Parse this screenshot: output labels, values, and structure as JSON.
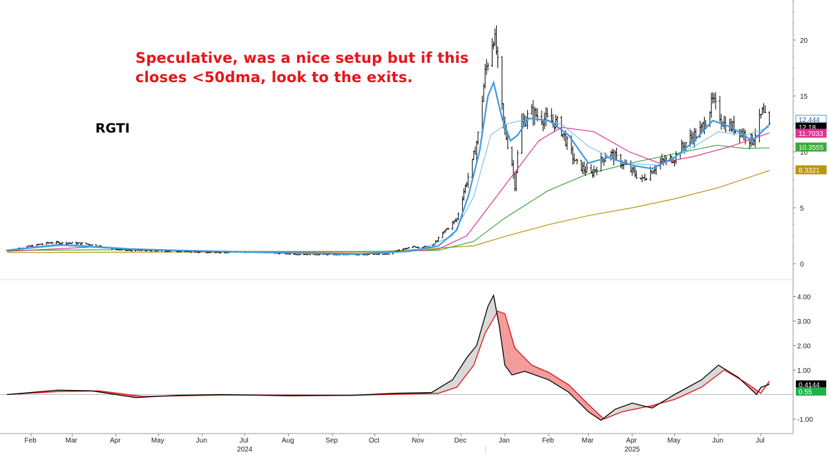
{
  "annotation": {
    "line1": "Speculative, was a nice setup but if this",
    "line2": "closes <50dma, look to the exits."
  },
  "ticker": "RGTI",
  "colors": {
    "annotation": "#e8141b",
    "price_bars": "#000000",
    "ma_short": "#3d9be0",
    "ma_medium": "#7cc2f0",
    "ma_pink": "#e0358f",
    "ma_50": "#3aa83a",
    "ma_200": "#b8960f",
    "osc_line": "#000000",
    "osc_signal": "#e01010",
    "osc_fill_up": "#d8d8d8",
    "osc_fill_down": "#f39a9a"
  },
  "chart_data": [
    {
      "type": "ohlc",
      "title": "RGTI",
      "y_ticks": [
        "0",
        "5",
        "10",
        "15",
        "20"
      ],
      "ylim": [
        -0.5,
        23.5
      ],
      "x_ticks": [
        "Feb",
        "Mar",
        "Apr",
        "May",
        "Jun",
        "Jul",
        "Aug",
        "Sep",
        "Oct",
        "Nov",
        "Dec",
        "Jan",
        "Feb",
        "Mar",
        "Apr",
        "May",
        "Jun",
        "Jul"
      ],
      "years": [
        "2024",
        "2025"
      ],
      "value_tags": [
        {
          "label": "12.444",
          "series": "ma_short"
        },
        {
          "label": "12.18",
          "series": "price"
        },
        {
          "label": "11.7033",
          "series": "ma_pink"
        },
        {
          "label": "10.3555",
          "series": "ma_50"
        },
        {
          "label": "8.3321",
          "series": "ma_200"
        }
      ],
      "price_path": [
        [
          "2024-01-15",
          1.2
        ],
        [
          "2024-02-15",
          1.9
        ],
        [
          "2024-03-10",
          1.8
        ],
        [
          "2024-04-05",
          1.2
        ],
        [
          "2024-05-05",
          1.15
        ],
        [
          "2024-06-05",
          1.0
        ],
        [
          "2024-07-05",
          1.05
        ],
        [
          "2024-08-05",
          0.85
        ],
        [
          "2024-09-10",
          0.8
        ],
        [
          "2024-10-10",
          0.85
        ],
        [
          "2024-10-25",
          1.5
        ],
        [
          "2024-11-10",
          1.5
        ],
        [
          "2024-11-20",
          3.0
        ],
        [
          "2024-11-28",
          4.0
        ],
        [
          "2024-12-03",
          6.5
        ],
        [
          "2024-12-09",
          9.0
        ],
        [
          "2024-12-13",
          11.5
        ],
        [
          "2024-12-18",
          17.0
        ],
        [
          "2024-12-24",
          20.5
        ],
        [
          "2024-12-26",
          19.0
        ],
        [
          "2024-12-31",
          12.5
        ],
        [
          "2025-01-06",
          9.0
        ],
        [
          "2025-01-08",
          7.0
        ],
        [
          "2025-01-12",
          12.5
        ],
        [
          "2025-01-20",
          13.5
        ],
        [
          "2025-01-28",
          13.0
        ],
        [
          "2025-02-08",
          12.5
        ],
        [
          "2025-02-20",
          9.0
        ],
        [
          "2025-03-03",
          8.0
        ],
        [
          "2025-03-15",
          10.0
        ],
        [
          "2025-03-25",
          9.0
        ],
        [
          "2025-04-08",
          7.5
        ],
        [
          "2025-04-20",
          9.0
        ],
        [
          "2025-05-01",
          9.5
        ],
        [
          "2025-05-10",
          11.0
        ],
        [
          "2025-05-20",
          12.0
        ],
        [
          "2025-05-28",
          14.5
        ],
        [
          "2025-06-05",
          12.5
        ],
        [
          "2025-06-15",
          12.0
        ],
        [
          "2025-06-25",
          11.0
        ],
        [
          "2025-07-02",
          13.5
        ],
        [
          "2025-07-07",
          12.18
        ]
      ],
      "moving_averages": {
        "ma_short": [
          [
            "2024-01-15",
            1.2
          ],
          [
            "2024-02-20",
            1.7
          ],
          [
            "2024-04-10",
            1.3
          ],
          [
            "2024-07-01",
            1.05
          ],
          [
            "2024-09-15",
            0.85
          ],
          [
            "2024-10-25",
            1.1
          ],
          [
            "2024-11-15",
            1.6
          ],
          [
            "2024-11-28",
            3.0
          ],
          [
            "2024-12-06",
            6.0
          ],
          [
            "2024-12-14",
            10.0
          ],
          [
            "2024-12-20",
            15.0
          ],
          [
            "2024-12-24",
            16.2
          ],
          [
            "2024-12-30",
            13.0
          ],
          [
            "2025-01-05",
            11.0
          ],
          [
            "2025-01-10",
            11.5
          ],
          [
            "2025-01-18",
            13.0
          ],
          [
            "2025-02-01",
            12.8
          ],
          [
            "2025-02-15",
            11.5
          ],
          [
            "2025-03-01",
            9.0
          ],
          [
            "2025-03-15",
            9.5
          ],
          [
            "2025-04-01",
            8.8
          ],
          [
            "2025-04-15",
            8.5
          ],
          [
            "2025-05-01",
            9.5
          ],
          [
            "2025-05-15",
            11.0
          ],
          [
            "2025-05-28",
            12.8
          ],
          [
            "2025-06-10",
            12.2
          ],
          [
            "2025-06-25",
            11.0
          ],
          [
            "2025-07-07",
            12.444
          ]
        ],
        "ma_medium": [
          [
            "2024-01-15",
            1.2
          ],
          [
            "2024-03-01",
            1.7
          ],
          [
            "2024-05-01",
            1.2
          ],
          [
            "2024-09-15",
            0.85
          ],
          [
            "2024-11-01",
            1.2
          ],
          [
            "2024-11-25",
            2.5
          ],
          [
            "2024-12-10",
            6.0
          ],
          [
            "2024-12-22",
            11.5
          ],
          [
            "2025-01-02",
            12.5
          ],
          [
            "2025-01-20",
            13.0
          ],
          [
            "2025-02-10",
            12.5
          ],
          [
            "2025-03-01",
            10.5
          ],
          [
            "2025-03-25",
            9.0
          ],
          [
            "2025-04-20",
            8.8
          ],
          [
            "2025-05-15",
            10.5
          ],
          [
            "2025-06-01",
            11.8
          ],
          [
            "2025-06-20",
            11.5
          ],
          [
            "2025-07-07",
            12.2
          ]
        ],
        "ma_pink": [
          [
            "2024-01-15",
            1.1
          ],
          [
            "2024-03-15",
            1.5
          ],
          [
            "2024-06-01",
            1.1
          ],
          [
            "2024-10-01",
            0.9
          ],
          [
            "2024-11-15",
            1.3
          ],
          [
            "2024-12-05",
            2.5
          ],
          [
            "2024-12-20",
            5.0
          ],
          [
            "2025-01-10",
            8.5
          ],
          [
            "2025-01-25",
            11.0
          ],
          [
            "2025-02-10",
            12.2
          ],
          [
            "2025-03-05",
            11.8
          ],
          [
            "2025-03-30",
            10.0
          ],
          [
            "2025-04-20",
            9.0
          ],
          [
            "2025-05-15",
            9.6
          ],
          [
            "2025-06-10",
            10.5
          ],
          [
            "2025-07-07",
            11.7033
          ]
        ],
        "ma_50": [
          [
            "2024-01-15",
            1.2
          ],
          [
            "2024-04-01",
            1.25
          ],
          [
            "2024-07-01",
            1.1
          ],
          [
            "2024-10-01",
            1.1
          ],
          [
            "2024-11-15",
            1.2
          ],
          [
            "2024-12-10",
            2.0
          ],
          [
            "2024-12-31",
            4.0
          ],
          [
            "2025-01-31",
            6.5
          ],
          [
            "2025-02-28",
            8.0
          ],
          [
            "2025-03-31",
            9.0
          ],
          [
            "2025-04-30",
            9.8
          ],
          [
            "2025-05-31",
            10.6
          ],
          [
            "2025-06-20",
            10.3
          ],
          [
            "2025-07-07",
            10.3555
          ]
        ],
        "ma_200": [
          [
            "2024-01-15",
            1.0
          ],
          [
            "2024-06-01",
            1.05
          ],
          [
            "2024-10-01",
            1.05
          ],
          [
            "2024-12-10",
            1.6
          ],
          [
            "2024-12-31",
            2.4
          ],
          [
            "2025-02-01",
            3.5
          ],
          [
            "2025-03-01",
            4.3
          ],
          [
            "2025-04-01",
            5.0
          ],
          [
            "2025-05-01",
            5.8
          ],
          [
            "2025-06-01",
            6.8
          ],
          [
            "2025-07-07",
            8.3321
          ]
        ]
      }
    },
    {
      "type": "line",
      "y_ticks": [
        "-1.00",
        "1.00",
        "2.00",
        "3.00",
        "4.00"
      ],
      "ylim": [
        -1.5,
        4.6
      ],
      "value_tags": [
        {
          "label": "0.4144"
        },
        {
          "label": "0.55"
        }
      ],
      "oscillator": [
        [
          "2024-01-15",
          0.0
        ],
        [
          "2024-02-20",
          0.18
        ],
        [
          "2024-03-15",
          0.15
        ],
        [
          "2024-04-15",
          -0.12
        ],
        [
          "2024-05-15",
          -0.03
        ],
        [
          "2024-06-15",
          0.0
        ],
        [
          "2024-08-01",
          -0.05
        ],
        [
          "2024-09-15",
          -0.03
        ],
        [
          "2024-10-15",
          0.05
        ],
        [
          "2024-11-10",
          0.08
        ],
        [
          "2024-11-25",
          0.6
        ],
        [
          "2024-12-05",
          1.5
        ],
        [
          "2024-12-12",
          2.0
        ],
        [
          "2024-12-20",
          3.6
        ],
        [
          "2024-12-24",
          4.05
        ],
        [
          "2024-12-28",
          2.8
        ],
        [
          "2025-01-01",
          1.2
        ],
        [
          "2025-01-06",
          0.8
        ],
        [
          "2025-01-15",
          0.95
        ],
        [
          "2025-02-01",
          0.6
        ],
        [
          "2025-02-15",
          0.1
        ],
        [
          "2025-03-01",
          -0.7
        ],
        [
          "2025-03-10",
          -1.05
        ],
        [
          "2025-03-20",
          -0.6
        ],
        [
          "2025-04-01",
          -0.35
        ],
        [
          "2025-04-15",
          -0.55
        ],
        [
          "2025-05-01",
          0.0
        ],
        [
          "2025-05-20",
          0.6
        ],
        [
          "2025-06-01",
          1.2
        ],
        [
          "2025-06-15",
          0.7
        ],
        [
          "2025-06-28",
          0.0
        ],
        [
          "2025-07-01",
          0.3
        ],
        [
          "2025-07-07",
          0.4144
        ]
      ],
      "signal": [
        [
          "2024-01-15",
          0.0
        ],
        [
          "2024-02-20",
          0.12
        ],
        [
          "2024-03-20",
          0.15
        ],
        [
          "2024-04-20",
          -0.08
        ],
        [
          "2024-06-15",
          -0.02
        ],
        [
          "2024-09-15",
          -0.03
        ],
        [
          "2024-11-15",
          0.05
        ],
        [
          "2024-11-28",
          0.3
        ],
        [
          "2024-12-10",
          1.2
        ],
        [
          "2024-12-18",
          2.5
        ],
        [
          "2024-12-27",
          3.4
        ],
        [
          "2025-01-01",
          3.3
        ],
        [
          "2025-01-08",
          1.9
        ],
        [
          "2025-01-20",
          1.2
        ],
        [
          "2025-02-01",
          0.9
        ],
        [
          "2025-02-15",
          0.4
        ],
        [
          "2025-03-01",
          -0.4
        ],
        [
          "2025-03-12",
          -1.0
        ],
        [
          "2025-03-25",
          -0.7
        ],
        [
          "2025-04-15",
          -0.45
        ],
        [
          "2025-05-01",
          -0.2
        ],
        [
          "2025-05-20",
          0.3
        ],
        [
          "2025-06-05",
          1.0
        ],
        [
          "2025-06-20",
          0.5
        ],
        [
          "2025-07-01",
          0.05
        ],
        [
          "2025-07-07",
          0.55
        ]
      ]
    }
  ]
}
